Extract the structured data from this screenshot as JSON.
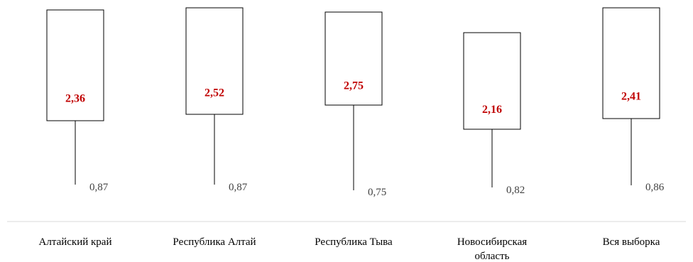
{
  "chart_data": {
    "type": "boxplot",
    "categories": [
      [
        "Алтайский край"
      ],
      [
        "Республика Алтай"
      ],
      [
        "Республика Тыва"
      ],
      [
        "Новосибирская",
        "область"
      ],
      [
        "Вся выборка"
      ]
    ],
    "series": [
      {
        "values": [
          2.36,
          2.52,
          2.75,
          2.16,
          2.41
        ],
        "labels": [
          "2,36",
          "2,52",
          "2,75",
          "2,16",
          "2,41"
        ]
      },
      {
        "values": [
          0.87,
          0.87,
          0.75,
          0.82,
          0.86
        ],
        "labels": [
          "0,87",
          "0,87",
          "0,75",
          "0,82",
          "0,86"
        ]
      }
    ],
    "title": "",
    "xlabel": "",
    "ylabel": "",
    "grid": false,
    "colors": {
      "mean": "#c00000",
      "sd": "#404040",
      "axis": "#d9d9d9"
    }
  }
}
